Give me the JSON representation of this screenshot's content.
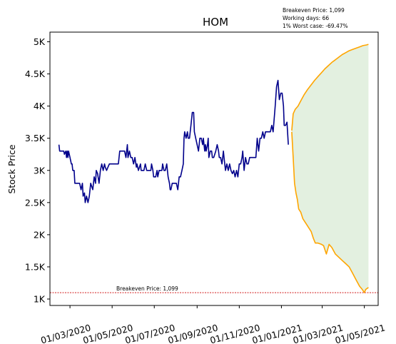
{
  "chart_data": {
    "type": "line",
    "title": "HOM",
    "xlabel": "",
    "ylabel": "Stock Price",
    "ylim": [
      900,
      5150
    ],
    "xlim": [
      "2020-02-01",
      "2021-05-21"
    ],
    "yticks": [
      {
        "value": 1000,
        "label": "1K"
      },
      {
        "value": 1500,
        "label": "1.5K"
      },
      {
        "value": 2000,
        "label": "2K"
      },
      {
        "value": 2500,
        "label": "2.5K"
      },
      {
        "value": 3000,
        "label": "3K"
      },
      {
        "value": 3500,
        "label": "3.5K"
      },
      {
        "value": 4000,
        "label": "4K"
      },
      {
        "value": 4500,
        "label": "4.5K"
      },
      {
        "value": 5000,
        "label": "5K"
      }
    ],
    "xticks": [
      {
        "value": "2020-03-01",
        "label": "01/03/2020"
      },
      {
        "value": "2020-05-01",
        "label": "01/05/2020"
      },
      {
        "value": "2020-07-01",
        "label": "01/07/2020"
      },
      {
        "value": "2020-09-01",
        "label": "01/09/2020"
      },
      {
        "value": "2020-11-01",
        "label": "01/11/2020"
      },
      {
        "value": "2021-01-01",
        "label": "01/01/2021"
      },
      {
        "value": "2021-03-01",
        "label": "01/03/2021"
      },
      {
        "value": "2021-05-01",
        "label": "01/05/2021"
      }
    ],
    "grid": false,
    "series": [
      {
        "color": "#00008b",
        "points": [
          [
            "2020-02-14",
            3400
          ],
          [
            "2020-02-15",
            3300
          ],
          [
            "2020-02-19",
            3300
          ],
          [
            "2020-02-21",
            3300
          ],
          [
            "2020-02-22",
            3250
          ],
          [
            "2020-02-24",
            3300
          ],
          [
            "2020-02-25",
            3200
          ],
          [
            "2020-02-26",
            3300
          ],
          [
            "2020-02-27",
            3200
          ],
          [
            "2020-02-28",
            3300
          ],
          [
            "2020-03-01",
            3200
          ],
          [
            "2020-03-03",
            3100
          ],
          [
            "2020-03-04",
            3100
          ],
          [
            "2020-03-05",
            3000
          ],
          [
            "2020-03-07",
            3000
          ],
          [
            "2020-03-08",
            2800
          ],
          [
            "2020-03-15",
            2800
          ],
          [
            "2020-03-17",
            2700
          ],
          [
            "2020-03-19",
            2800
          ],
          [
            "2020-03-20",
            2600
          ],
          [
            "2020-03-22",
            2650
          ],
          [
            "2020-03-23",
            2500
          ],
          [
            "2020-03-25",
            2600
          ],
          [
            "2020-03-27",
            2500
          ],
          [
            "2020-03-29",
            2600
          ],
          [
            "2020-03-31",
            2800
          ],
          [
            "2020-04-03",
            2700
          ],
          [
            "2020-04-05",
            2900
          ],
          [
            "2020-04-07",
            2800
          ],
          [
            "2020-04-08",
            3000
          ],
          [
            "2020-04-10",
            2950
          ],
          [
            "2020-04-12",
            2800
          ],
          [
            "2020-04-14",
            3000
          ],
          [
            "2020-04-16",
            3100
          ],
          [
            "2020-04-18",
            3000
          ],
          [
            "2020-04-20",
            3100
          ],
          [
            "2020-04-21",
            3050
          ],
          [
            "2020-04-23",
            3000
          ],
          [
            "2020-04-25",
            3050
          ],
          [
            "2020-04-27",
            3100
          ],
          [
            "2020-05-01",
            3100
          ],
          [
            "2020-05-10",
            3100
          ],
          [
            "2020-05-12",
            3300
          ],
          [
            "2020-05-19",
            3300
          ],
          [
            "2020-05-21",
            3200
          ],
          [
            "2020-05-23",
            3400
          ],
          [
            "2020-05-24",
            3200
          ],
          [
            "2020-05-26",
            3300
          ],
          [
            "2020-05-28",
            3200
          ],
          [
            "2020-05-30",
            3200
          ],
          [
            "2020-06-01",
            3100
          ],
          [
            "2020-06-03",
            3200
          ],
          [
            "2020-06-05",
            3050
          ],
          [
            "2020-06-06",
            3100
          ],
          [
            "2020-06-08",
            3000
          ],
          [
            "2020-06-11",
            3100
          ],
          [
            "2020-06-12",
            3000
          ],
          [
            "2020-06-16",
            3000
          ],
          [
            "2020-06-18",
            3100
          ],
          [
            "2020-06-20",
            3000
          ],
          [
            "2020-06-26",
            3000
          ],
          [
            "2020-06-27",
            3100
          ],
          [
            "2020-06-29",
            3000
          ],
          [
            "2020-06-30",
            2900
          ],
          [
            "2020-07-03",
            2900
          ],
          [
            "2020-07-05",
            3000
          ],
          [
            "2020-07-06",
            2900
          ],
          [
            "2020-07-08",
            3000
          ],
          [
            "2020-07-10",
            3000
          ],
          [
            "2020-07-12",
            3000
          ],
          [
            "2020-07-13",
            3100
          ],
          [
            "2020-07-15",
            3000
          ],
          [
            "2020-07-17",
            3000
          ],
          [
            "2020-07-19",
            3100
          ],
          [
            "2020-07-21",
            2900
          ],
          [
            "2020-07-23",
            2800
          ],
          [
            "2020-07-24",
            2700
          ],
          [
            "2020-07-25",
            2700
          ],
          [
            "2020-07-27",
            2800
          ],
          [
            "2020-08-02",
            2800
          ],
          [
            "2020-08-04",
            2700
          ],
          [
            "2020-08-06",
            2900
          ],
          [
            "2020-08-08",
            2900
          ],
          [
            "2020-08-10",
            3000
          ],
          [
            "2020-08-12",
            3100
          ],
          [
            "2020-08-13",
            3500
          ],
          [
            "2020-08-14",
            3600
          ],
          [
            "2020-08-16",
            3500
          ],
          [
            "2020-08-18",
            3600
          ],
          [
            "2020-08-19",
            3500
          ],
          [
            "2020-08-21",
            3500
          ],
          [
            "2020-08-23",
            3700
          ],
          [
            "2020-08-25",
            3900
          ],
          [
            "2020-08-27",
            3900
          ],
          [
            "2020-08-28",
            3600
          ],
          [
            "2020-08-30",
            3500
          ],
          [
            "2020-09-03",
            3300
          ],
          [
            "2020-09-05",
            3500
          ],
          [
            "2020-09-07",
            3500
          ],
          [
            "2020-09-09",
            3400
          ],
          [
            "2020-09-10",
            3500
          ],
          [
            "2020-09-12",
            3300
          ],
          [
            "2020-09-13",
            3400
          ],
          [
            "2020-09-14",
            3300
          ],
          [
            "2020-09-16",
            3400
          ],
          [
            "2020-09-17",
            3500
          ],
          [
            "2020-09-18",
            3200
          ],
          [
            "2020-09-20",
            3300
          ],
          [
            "2020-09-22",
            3300
          ],
          [
            "2020-09-23",
            3200
          ],
          [
            "2020-09-25",
            3200
          ],
          [
            "2020-09-28",
            3300
          ],
          [
            "2020-09-30",
            3400
          ],
          [
            "2020-10-02",
            3300
          ],
          [
            "2020-10-03",
            3200
          ],
          [
            "2020-10-05",
            3200
          ],
          [
            "2020-10-07",
            3100
          ],
          [
            "2020-10-09",
            3300
          ],
          [
            "2020-10-10",
            3200
          ],
          [
            "2020-10-12",
            3000
          ],
          [
            "2020-10-14",
            3100
          ],
          [
            "2020-10-16",
            3000
          ],
          [
            "2020-10-18",
            3100
          ],
          [
            "2020-10-20",
            3000
          ],
          [
            "2020-10-22",
            2950
          ],
          [
            "2020-10-24",
            3000
          ],
          [
            "2020-10-26",
            2900
          ],
          [
            "2020-10-28",
            3000
          ],
          [
            "2020-10-30",
            2900
          ],
          [
            "2020-11-01",
            3100
          ],
          [
            "2020-11-03",
            3100
          ],
          [
            "2020-11-05",
            3200
          ],
          [
            "2020-11-06",
            3300
          ],
          [
            "2020-11-08",
            3000
          ],
          [
            "2020-11-10",
            3200
          ],
          [
            "2020-11-12",
            3100
          ],
          [
            "2020-11-14",
            3100
          ],
          [
            "2020-11-16",
            3200
          ],
          [
            "2020-11-18",
            3200
          ],
          [
            "2020-11-25",
            3200
          ],
          [
            "2020-11-27",
            3500
          ],
          [
            "2020-11-29",
            3300
          ],
          [
            "2020-12-01",
            3500
          ],
          [
            "2020-12-03",
            3500
          ],
          [
            "2020-12-05",
            3600
          ],
          [
            "2020-12-07",
            3500
          ],
          [
            "2020-12-09",
            3600
          ],
          [
            "2020-12-16",
            3600
          ],
          [
            "2020-12-18",
            3700
          ],
          [
            "2020-12-20",
            3600
          ],
          [
            "2020-12-23",
            4000
          ],
          [
            "2020-12-25",
            4300
          ],
          [
            "2020-12-27",
            4400
          ],
          [
            "2020-12-29",
            4100
          ],
          [
            "2020-12-31",
            4200
          ],
          [
            "2021-01-02",
            4200
          ],
          [
            "2021-01-04",
            4000
          ],
          [
            "2021-01-05",
            3700
          ],
          [
            "2021-01-07",
            3700
          ],
          [
            "2021-01-09",
            3750
          ],
          [
            "2021-01-11",
            3400
          ]
        ]
      },
      {
        "color": "#ffa500",
        "points": [
          [
            "2021-01-16",
            3620
          ],
          [
            "2021-01-18",
            3880
          ],
          [
            "2021-01-21",
            3950
          ],
          [
            "2021-01-25",
            4000
          ],
          [
            "2021-01-29",
            4080
          ],
          [
            "2021-02-03",
            4180
          ],
          [
            "2021-02-08",
            4260
          ],
          [
            "2021-02-13",
            4330
          ],
          [
            "2021-02-18",
            4400
          ],
          [
            "2021-02-23",
            4460
          ],
          [
            "2021-02-28",
            4520
          ],
          [
            "2021-03-05",
            4580
          ],
          [
            "2021-03-10",
            4630
          ],
          [
            "2021-03-15",
            4680
          ],
          [
            "2021-03-20",
            4720
          ],
          [
            "2021-03-25",
            4760
          ],
          [
            "2021-03-30",
            4800
          ],
          [
            "2021-04-04",
            4830
          ],
          [
            "2021-04-09",
            4860
          ],
          [
            "2021-04-14",
            4880
          ],
          [
            "2021-04-19",
            4900
          ],
          [
            "2021-04-24",
            4920
          ],
          [
            "2021-04-29",
            4940
          ],
          [
            "2021-05-04",
            4950
          ],
          [
            "2021-05-07",
            4960
          ]
        ]
      },
      {
        "color": "#ffa500",
        "points": [
          [
            "2021-01-16",
            3600
          ],
          [
            "2021-01-18",
            3200
          ],
          [
            "2021-01-20",
            2800
          ],
          [
            "2021-01-22",
            2650
          ],
          [
            "2021-01-24",
            2550
          ],
          [
            "2021-01-26",
            2400
          ],
          [
            "2021-01-29",
            2350
          ],
          [
            "2021-02-01",
            2250
          ],
          [
            "2021-02-04",
            2200
          ],
          [
            "2021-02-07",
            2150
          ],
          [
            "2021-02-10",
            2100
          ],
          [
            "2021-02-13",
            2050
          ],
          [
            "2021-02-16",
            1950
          ],
          [
            "2021-02-19",
            1870
          ],
          [
            "2021-02-23",
            1870
          ],
          [
            "2021-02-28",
            1850
          ],
          [
            "2021-03-03",
            1830
          ],
          [
            "2021-03-07",
            1700
          ],
          [
            "2021-03-11",
            1850
          ],
          [
            "2021-03-15",
            1800
          ],
          [
            "2021-03-20",
            1700
          ],
          [
            "2021-03-25",
            1650
          ],
          [
            "2021-03-30",
            1600
          ],
          [
            "2021-04-04",
            1550
          ],
          [
            "2021-04-09",
            1500
          ],
          [
            "2021-04-14",
            1400
          ],
          [
            "2021-04-19",
            1300
          ],
          [
            "2021-04-24",
            1200
          ],
          [
            "2021-04-28",
            1150
          ],
          [
            "2021-05-01",
            1100
          ],
          [
            "2021-05-03",
            1150
          ],
          [
            "2021-05-07",
            1180
          ]
        ]
      }
    ],
    "breakeven": {
      "value": 1099,
      "color": "#cc0000",
      "label": "Breakeven Price: 1,099"
    },
    "fill_color": "#e3f0e0",
    "info_lines": [
      "Breakeven Price: 1,099",
      "Working days: 66",
      "1% Worst case: -69.47%"
    ]
  }
}
